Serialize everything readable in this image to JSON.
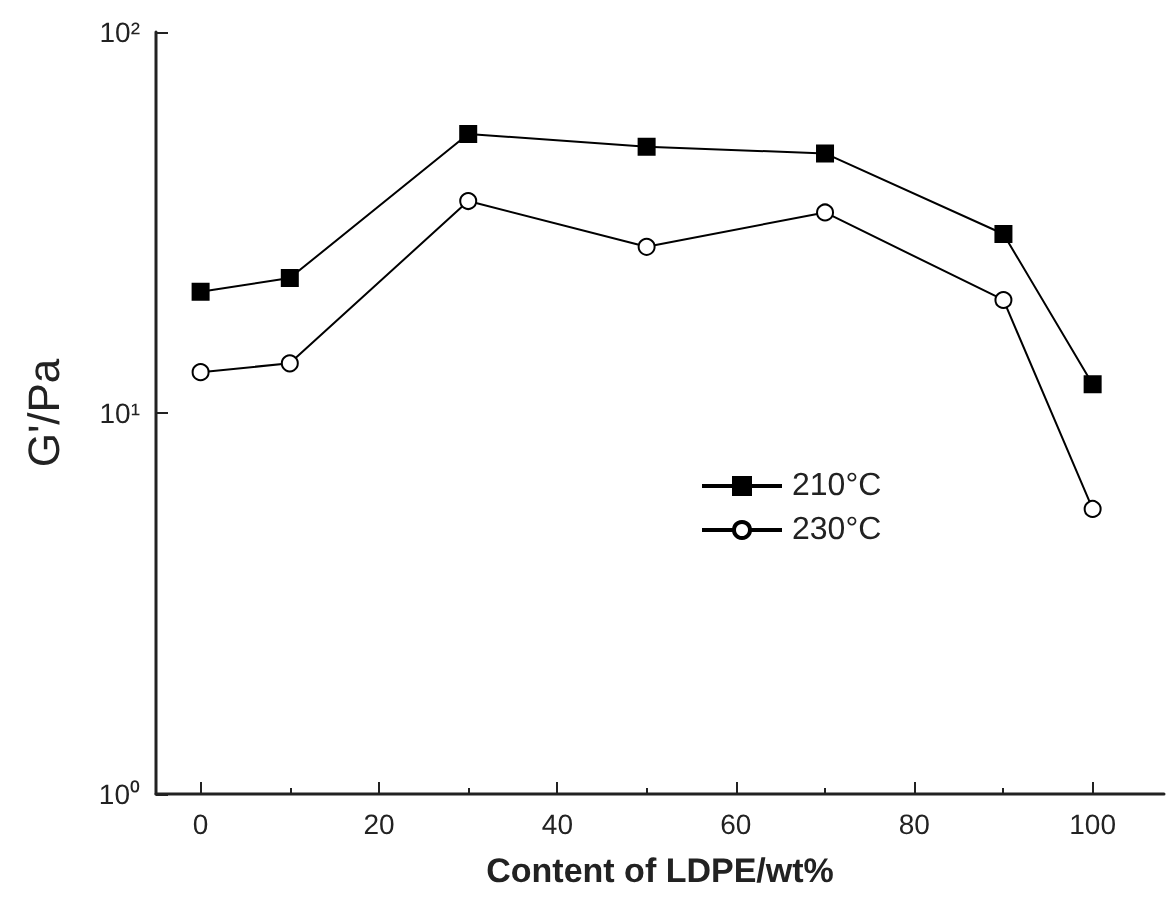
{
  "chart_data": {
    "type": "line",
    "xlabel": "Content of LDPE/wt%",
    "ylabel": "G'/Pa",
    "x": [
      0,
      10,
      30,
      50,
      70,
      90,
      100
    ],
    "series": [
      {
        "name": "210°C",
        "color": "#000000",
        "marker": "square",
        "values": [
          20.8,
          22.6,
          54,
          50,
          48,
          29.5,
          11.9
        ]
      },
      {
        "name": "230°C",
        "color": "#000000",
        "marker": "circle",
        "values": [
          12.8,
          13.5,
          36,
          27.3,
          33.6,
          19.8,
          5.6
        ]
      }
    ],
    "xlim": [
      -5,
      108
    ],
    "xticks": [
      0,
      20,
      40,
      60,
      80,
      100
    ],
    "ylim": [
      1,
      100
    ],
    "yticks": [
      {
        "value": 1,
        "label": "10⁰"
      },
      {
        "value": 10,
        "label": "10¹"
      },
      {
        "value": 100,
        "label": "10²"
      }
    ],
    "log": "y",
    "grid": false,
    "legend": "right",
    "line_style": "solid"
  }
}
